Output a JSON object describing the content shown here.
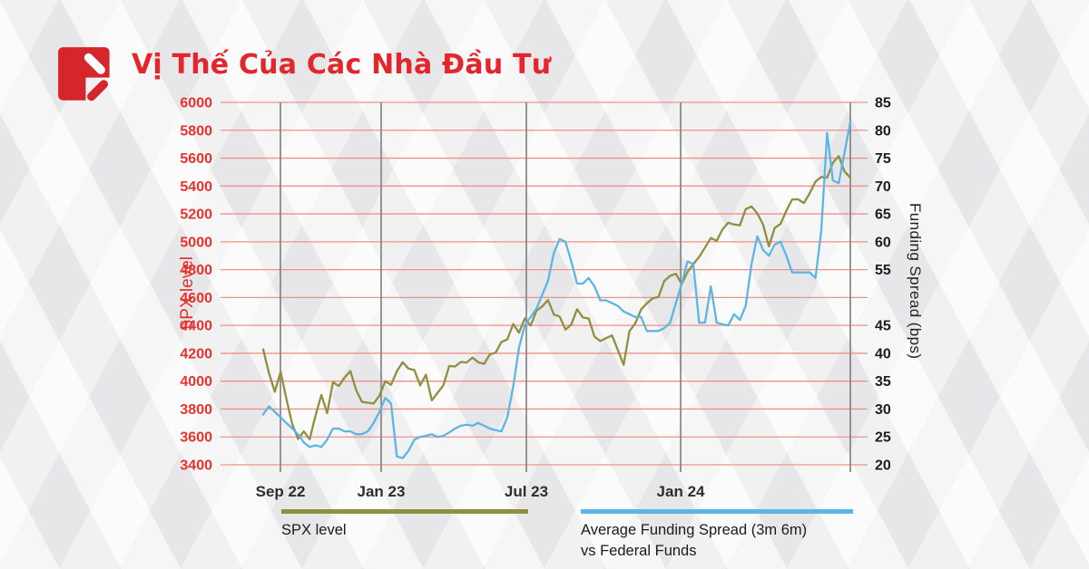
{
  "header": {
    "title": "Vị Thế Của Các Nhà Đầu Tư",
    "logo_color": "#d6252b"
  },
  "chart_data": {
    "type": "line",
    "title": "Vị Thế Của Các Nhà Đầu Tư",
    "grid_color": "#f0908a",
    "vgrid_color": "#8a8a8a",
    "x_axis": {
      "ticks": [
        {
          "label": "Sep 22",
          "pos": 0.0294
        },
        {
          "label": "Jan 23",
          "pos": 0.2009
        },
        {
          "label": "Jul 23",
          "pos": 0.4482
        },
        {
          "label": "Jan 24",
          "pos": 0.711
        }
      ]
    },
    "left_axis": {
      "label": "SPX level",
      "min": 3400,
      "max": 6000,
      "step": 200,
      "color": "#e8312e"
    },
    "right_axis": {
      "label": "Funding Spread (bps)",
      "min": 20,
      "max": 85,
      "step": 5,
      "skip_labels": [
        50
      ],
      "color": "#1d1d1f"
    },
    "legend_position": "bottom",
    "series": [
      {
        "name": "SPX level",
        "axis": "left",
        "color": "#8e903f",
        "values": [
          4228,
          4058,
          3924,
          4067,
          3873,
          3693,
          3586,
          3640,
          3583,
          3753,
          3901,
          3771,
          3993,
          3965,
          4026,
          4072,
          3934,
          3852,
          3845,
          3840,
          3895,
          3999,
          3973,
          4071,
          4136,
          4090,
          4079,
          3970,
          4046,
          3862,
          3917,
          3971,
          4109,
          4105,
          4138,
          4134,
          4169,
          4136,
          4124,
          4192,
          4205,
          4282,
          4299,
          4410,
          4348,
          4450,
          4399,
          4505,
          4536,
          4582,
          4478,
          4464,
          4370,
          4406,
          4516,
          4457,
          4450,
          4320,
          4288,
          4309,
          4328,
          4224,
          4117,
          4358,
          4415,
          4514,
          4559,
          4595,
          4604,
          4719,
          4755,
          4770,
          4697,
          4784,
          4840,
          4891,
          4959,
          5027,
          5006,
          5089,
          5137,
          5124,
          5117,
          5234,
          5254,
          5204,
          5123,
          4967,
          5100,
          5128,
          5223,
          5303,
          5305,
          5278,
          5347,
          5432,
          5465,
          5460,
          5567,
          5615,
          5505,
          5459
        ]
      },
      {
        "name": "Average Funding Spread (3m 6m) vs Federal Funds",
        "axis": "right",
        "color": "#5cb6e4",
        "values": [
          29,
          30.5,
          29.5,
          28.5,
          27.5,
          26.5,
          25.5,
          24,
          23.2,
          23.5,
          23.2,
          24.5,
          26.5,
          26.5,
          26,
          26,
          25.5,
          25.5,
          26,
          27.5,
          29.5,
          32,
          31,
          21.5,
          21.2,
          22.5,
          24.5,
          25,
          25.2,
          25.5,
          25,
          25.2,
          25.8,
          26.5,
          27,
          27.2,
          27,
          27.5,
          27,
          26.5,
          26.2,
          26,
          28.5,
          34,
          41,
          45,
          46.5,
          48,
          50.5,
          53,
          58,
          60.5,
          60,
          56.5,
          52.5,
          52.5,
          53.5,
          52,
          49.5,
          49.5,
          49,
          48.5,
          47.5,
          47,
          46.5,
          46.5,
          44,
          44,
          44,
          44.5,
          45.5,
          49,
          52.5,
          56.5,
          56,
          45.5,
          45.5,
          52,
          45.5,
          45.2,
          45,
          47,
          46,
          48.5,
          56,
          61,
          58.5,
          57.5,
          59.5,
          60,
          57.5,
          54.5,
          54.5,
          54.5,
          54.5,
          53.5,
          62,
          79.5,
          71,
          70.5,
          76,
          81.5
        ]
      }
    ]
  },
  "legend": {
    "items": [
      {
        "lines": [
          "SPX level"
        ],
        "color": "#8e903f"
      },
      {
        "lines": [
          "Average Funding Spread (3m 6m)",
          "vs Federal Funds"
        ],
        "color": "#5cb6e4"
      }
    ]
  }
}
